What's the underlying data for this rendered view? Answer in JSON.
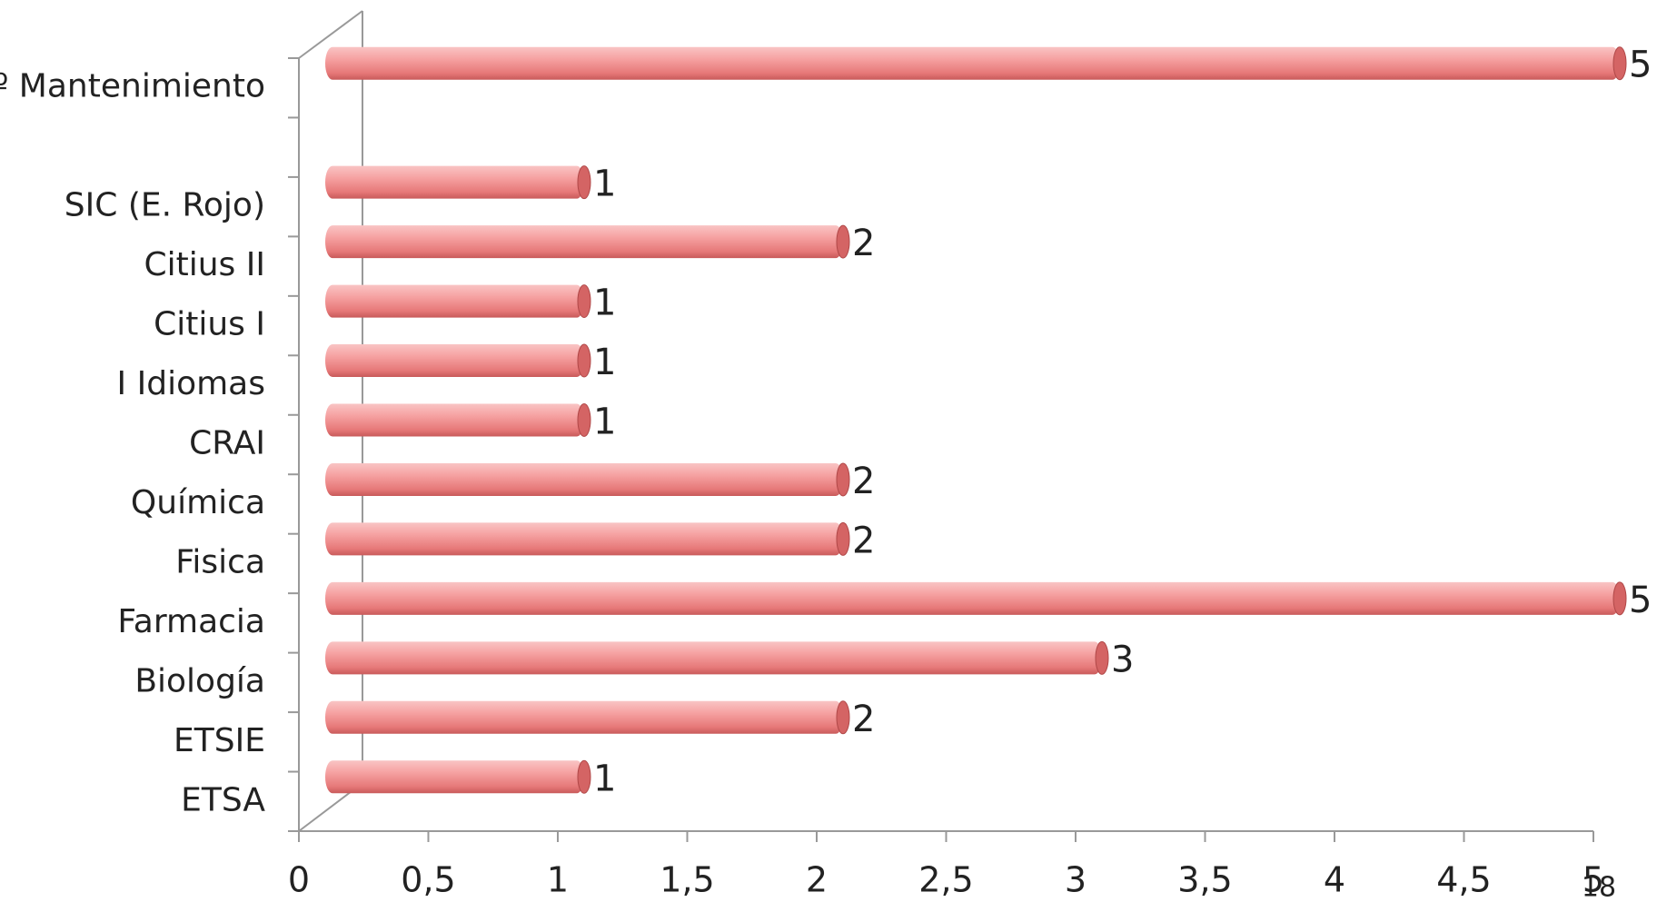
{
  "chart_data": {
    "type": "bar",
    "orientation": "horizontal",
    "categories": [
      "ETSA",
      "ETSIE",
      "Biología",
      "Farmacia",
      "Fisica",
      "Química",
      "CRAI",
      "I Idiomas",
      "Citius I",
      "Citius II",
      "SIC (E. Rojo)",
      null,
      "Sº Mantenimiento"
    ],
    "values": [
      1,
      2,
      3,
      5,
      2,
      2,
      1,
      1,
      1,
      2,
      1,
      null,
      5
    ],
    "color": "#f08080",
    "xlim": [
      0,
      5
    ],
    "xticks": [
      0,
      {
        "value": 0.5,
        "label": "0,5"
      },
      1,
      {
        "value": 1.5,
        "label": "1,5"
      },
      2,
      {
        "value": 2.5,
        "label": "2,5"
      },
      3,
      {
        "value": 3.5,
        "label": "3,5"
      },
      4,
      {
        "value": 4.5,
        "label": "4,5"
      },
      5
    ],
    "grid": false
  },
  "page_number": "18"
}
